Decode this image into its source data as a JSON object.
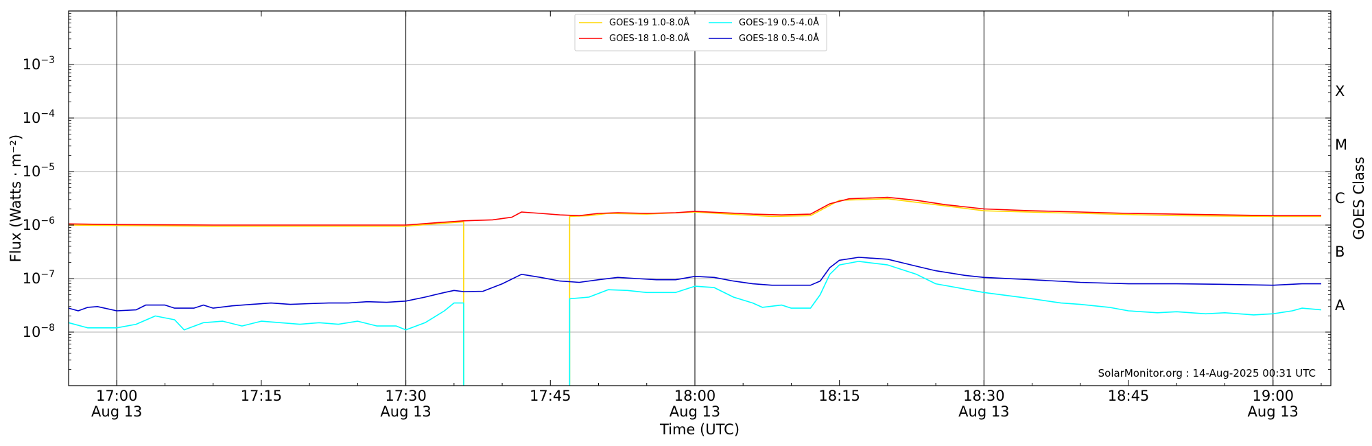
{
  "chart_data": {
    "type": "line",
    "title": "",
    "xlabel": "Time (UTC)",
    "ylabel": "Flux (Watts · m⁻²)",
    "right_label": "GOES Class",
    "y_scale": "log",
    "ylim": [
      1e-09,
      0.01
    ],
    "xlim": [
      "16:55",
      "19:06"
    ],
    "grid": "horizontal lines at each decade",
    "legend": "top-center, 2 columns",
    "x_ticks": [
      {
        "time": "17:00",
        "l1": "17:00",
        "l2": "Aug 13"
      },
      {
        "time": "17:15",
        "l1": "17:15",
        "l2": ""
      },
      {
        "time": "17:30",
        "l1": "17:30",
        "l2": "Aug 13"
      },
      {
        "time": "17:45",
        "l1": "17:45",
        "l2": ""
      },
      {
        "time": "18:00",
        "l1": "18:00",
        "l2": "Aug 13"
      },
      {
        "time": "18:15",
        "l1": "18:15",
        "l2": ""
      },
      {
        "time": "18:30",
        "l1": "18:30",
        "l2": "Aug 13"
      },
      {
        "time": "18:45",
        "l1": "18:45",
        "l2": ""
      },
      {
        "time": "19:00",
        "l1": "19:00",
        "l2": "Aug 13"
      }
    ],
    "vlines": [
      "17:00",
      "17:30",
      "18:00",
      "18:30",
      "19:00"
    ],
    "y_ticks": [
      {
        "value": 1e-08,
        "base": "10",
        "exp": "−8"
      },
      {
        "value": 1e-07,
        "base": "10",
        "exp": "−7"
      },
      {
        "value": 1e-06,
        "base": "10",
        "exp": "−6"
      },
      {
        "value": 1e-05,
        "base": "10",
        "exp": "−5"
      },
      {
        "value": 0.0001,
        "base": "10",
        "exp": "−4"
      },
      {
        "value": 0.001,
        "base": "10",
        "exp": "−3"
      }
    ],
    "goes_classes": [
      {
        "label": "A",
        "value": 3.16e-08
      },
      {
        "label": "B",
        "value": 3.16e-07
      },
      {
        "label": "C",
        "value": 3.16e-06
      },
      {
        "label": "M",
        "value": 3.16e-05
      },
      {
        "label": "X",
        "value": 0.000316
      }
    ],
    "series": [
      {
        "name": "GOES-19 1.0-8.0Å",
        "color": "#ffd700",
        "points": [
          [
            "16:55",
            1e-06
          ],
          [
            "17:00",
            9.8e-07
          ],
          [
            "17:10",
            9.5e-07
          ],
          [
            "17:20",
            9.5e-07
          ],
          [
            "17:30",
            9.5e-07
          ],
          [
            "17:33",
            1.05e-06
          ],
          [
            "17:36",
            1.15e-06
          ],
          [
            "17:36",
            1e-09
          ],
          null,
          [
            "17:47",
            1e-09
          ],
          [
            "17:47",
            1.45e-06
          ],
          [
            "17:49",
            1.5e-06
          ],
          [
            "17:51",
            1.65e-06
          ],
          [
            "17:55",
            1.6e-06
          ],
          [
            "18:00",
            1.75e-06
          ],
          [
            "18:05",
            1.55e-06
          ],
          [
            "18:08",
            1.45e-06
          ],
          [
            "18:12",
            1.5e-06
          ],
          [
            "18:15",
            2.9e-06
          ],
          [
            "18:20",
            3.1e-06
          ],
          [
            "18:25",
            2.4e-06
          ],
          [
            "18:30",
            1.85e-06
          ],
          [
            "18:40",
            1.65e-06
          ],
          [
            "18:50",
            1.5e-06
          ],
          [
            "19:00",
            1.45e-06
          ],
          [
            "19:05",
            1.45e-06
          ]
        ]
      },
      {
        "name": "GOES-19 0.5-4.0Å",
        "color": "#00ffff",
        "points": [
          [
            "16:55",
            1.5e-08
          ],
          [
            "16:57",
            1.2e-08
          ],
          [
            "17:00",
            1.2e-08
          ],
          [
            "17:02",
            1.4e-08
          ],
          [
            "17:04",
            2e-08
          ],
          [
            "17:06",
            1.7e-08
          ],
          [
            "17:07",
            1.1e-08
          ],
          [
            "17:09",
            1.5e-08
          ],
          [
            "17:11",
            1.6e-08
          ],
          [
            "17:13",
            1.3e-08
          ],
          [
            "17:15",
            1.6e-08
          ],
          [
            "17:17",
            1.5e-08
          ],
          [
            "17:19",
            1.4e-08
          ],
          [
            "17:21",
            1.5e-08
          ],
          [
            "17:23",
            1.4e-08
          ],
          [
            "17:25",
            1.6e-08
          ],
          [
            "17:27",
            1.3e-08
          ],
          [
            "17:29",
            1.3e-08
          ],
          [
            "17:30",
            1.1e-08
          ],
          [
            "17:32",
            1.5e-08
          ],
          [
            "17:34",
            2.5e-08
          ],
          [
            "17:35",
            3.5e-08
          ],
          [
            "17:36",
            3.5e-08
          ],
          [
            "17:36",
            1e-09
          ],
          null,
          [
            "17:47",
            1e-09
          ],
          [
            "17:47",
            4.2e-08
          ],
          [
            "17:49",
            4.5e-08
          ],
          [
            "17:51",
            6.2e-08
          ],
          [
            "17:53",
            6e-08
          ],
          [
            "17:55",
            5.5e-08
          ],
          [
            "17:58",
            5.5e-08
          ],
          [
            "18:00",
            7.2e-08
          ],
          [
            "18:02",
            6.8e-08
          ],
          [
            "18:04",
            4.5e-08
          ],
          [
            "18:06",
            3.5e-08
          ],
          [
            "18:07",
            2.9e-08
          ],
          [
            "18:09",
            3.2e-08
          ],
          [
            "18:10",
            2.8e-08
          ],
          [
            "18:12",
            2.8e-08
          ],
          [
            "18:13",
            5e-08
          ],
          [
            "18:14",
            1.2e-07
          ],
          [
            "18:15",
            1.8e-07
          ],
          [
            "18:17",
            2.1e-07
          ],
          [
            "18:20",
            1.8e-07
          ],
          [
            "18:23",
            1.2e-07
          ],
          [
            "18:25",
            8e-08
          ],
          [
            "18:30",
            5.5e-08
          ],
          [
            "18:35",
            4.2e-08
          ],
          [
            "18:38",
            3.5e-08
          ],
          [
            "18:40",
            3.3e-08
          ],
          [
            "18:43",
            2.9e-08
          ],
          [
            "18:45",
            2.5e-08
          ],
          [
            "18:48",
            2.3e-08
          ],
          [
            "18:50",
            2.4e-08
          ],
          [
            "18:53",
            2.2e-08
          ],
          [
            "18:55",
            2.3e-08
          ],
          [
            "18:58",
            2.1e-08
          ],
          [
            "19:00",
            2.2e-08
          ],
          [
            "19:02",
            2.5e-08
          ],
          [
            "19:03",
            2.8e-08
          ],
          [
            "19:05",
            2.6e-08
          ]
        ]
      },
      {
        "name": "GOES-18 1.0-8.0Å",
        "color": "#ff0000",
        "points": [
          [
            "16:55",
            1.05e-06
          ],
          [
            "17:00",
            1.02e-06
          ],
          [
            "17:10",
            1e-06
          ],
          [
            "17:20",
            1e-06
          ],
          [
            "17:30",
            1e-06
          ],
          [
            "17:33",
            1.1e-06
          ],
          [
            "17:36",
            1.2e-06
          ],
          [
            "17:39",
            1.25e-06
          ],
          [
            "17:41",
            1.4e-06
          ],
          [
            "17:42",
            1.75e-06
          ],
          [
            "17:44",
            1.65e-06
          ],
          [
            "17:46",
            1.55e-06
          ],
          [
            "17:48",
            1.5e-06
          ],
          [
            "17:50",
            1.65e-06
          ],
          [
            "17:52",
            1.7e-06
          ],
          [
            "17:55",
            1.65e-06
          ],
          [
            "17:58",
            1.7e-06
          ],
          [
            "18:00",
            1.8e-06
          ],
          [
            "18:03",
            1.7e-06
          ],
          [
            "18:06",
            1.6e-06
          ],
          [
            "18:09",
            1.55e-06
          ],
          [
            "18:12",
            1.6e-06
          ],
          [
            "18:14",
            2.5e-06
          ],
          [
            "18:16",
            3.1e-06
          ],
          [
            "18:20",
            3.3e-06
          ],
          [
            "18:23",
            2.9e-06
          ],
          [
            "18:26",
            2.4e-06
          ],
          [
            "18:30",
            2e-06
          ],
          [
            "18:35",
            1.85e-06
          ],
          [
            "18:40",
            1.75e-06
          ],
          [
            "18:45",
            1.65e-06
          ],
          [
            "18:50",
            1.6e-06
          ],
          [
            "18:55",
            1.55e-06
          ],
          [
            "19:00",
            1.5e-06
          ],
          [
            "19:05",
            1.5e-06
          ]
        ]
      },
      {
        "name": "GOES-18 0.5-4.0Å",
        "color": "#0000cc",
        "points": [
          [
            "16:55",
            2.8e-08
          ],
          [
            "16:56",
            2.5e-08
          ],
          [
            "16:57",
            2.9e-08
          ],
          [
            "16:58",
            3e-08
          ],
          [
            "17:00",
            2.5e-08
          ],
          [
            "17:02",
            2.6e-08
          ],
          [
            "17:03",
            3.2e-08
          ],
          [
            "17:05",
            3.2e-08
          ],
          [
            "17:06",
            2.8e-08
          ],
          [
            "17:08",
            2.8e-08
          ],
          [
            "17:09",
            3.2e-08
          ],
          [
            "17:10",
            2.8e-08
          ],
          [
            "17:12",
            3.1e-08
          ],
          [
            "17:14",
            3.3e-08
          ],
          [
            "17:16",
            3.5e-08
          ],
          [
            "17:18",
            3.3e-08
          ],
          [
            "17:20",
            3.4e-08
          ],
          [
            "17:22",
            3.5e-08
          ],
          [
            "17:24",
            3.5e-08
          ],
          [
            "17:26",
            3.7e-08
          ],
          [
            "17:28",
            3.6e-08
          ],
          [
            "17:30",
            3.8e-08
          ],
          [
            "17:32",
            4.5e-08
          ],
          [
            "17:34",
            5.5e-08
          ],
          [
            "17:35",
            6e-08
          ],
          [
            "17:36",
            5.7e-08
          ],
          [
            "17:38",
            5.8e-08
          ],
          [
            "17:40",
            8e-08
          ],
          [
            "17:42",
            1.2e-07
          ],
          [
            "17:44",
            1.05e-07
          ],
          [
            "17:46",
            9e-08
          ],
          [
            "17:48",
            8.5e-08
          ],
          [
            "17:50",
            9.5e-08
          ],
          [
            "17:52",
            1.05e-07
          ],
          [
            "17:54",
            1e-07
          ],
          [
            "17:56",
            9.5e-08
          ],
          [
            "17:58",
            9.5e-08
          ],
          [
            "18:00",
            1.1e-07
          ],
          [
            "18:02",
            1.05e-07
          ],
          [
            "18:04",
            9e-08
          ],
          [
            "18:06",
            8e-08
          ],
          [
            "18:08",
            7.5e-08
          ],
          [
            "18:10",
            7.5e-08
          ],
          [
            "18:12",
            7.5e-08
          ],
          [
            "18:13",
            9e-08
          ],
          [
            "18:14",
            1.6e-07
          ],
          [
            "18:15",
            2.2e-07
          ],
          [
            "18:17",
            2.5e-07
          ],
          [
            "18:20",
            2.3e-07
          ],
          [
            "18:23",
            1.7e-07
          ],
          [
            "18:25",
            1.4e-07
          ],
          [
            "18:28",
            1.15e-07
          ],
          [
            "18:30",
            1.05e-07
          ],
          [
            "18:35",
            9.5e-08
          ],
          [
            "18:40",
            8.5e-08
          ],
          [
            "18:45",
            8e-08
          ],
          [
            "18:50",
            8e-08
          ],
          [
            "18:55",
            7.8e-08
          ],
          [
            "19:00",
            7.5e-08
          ],
          [
            "19:03",
            8e-08
          ],
          [
            "19:05",
            8e-08
          ]
        ]
      }
    ],
    "legend_entries": [
      "GOES-19 1.0-8.0Å",
      "GOES-18 1.0-8.0Å",
      "GOES-19 0.5-4.0Å",
      "GOES-18 0.5-4.0Å"
    ],
    "annotation": "SolarMonitor.org : 14-Aug-2025 00:31 UTC"
  }
}
